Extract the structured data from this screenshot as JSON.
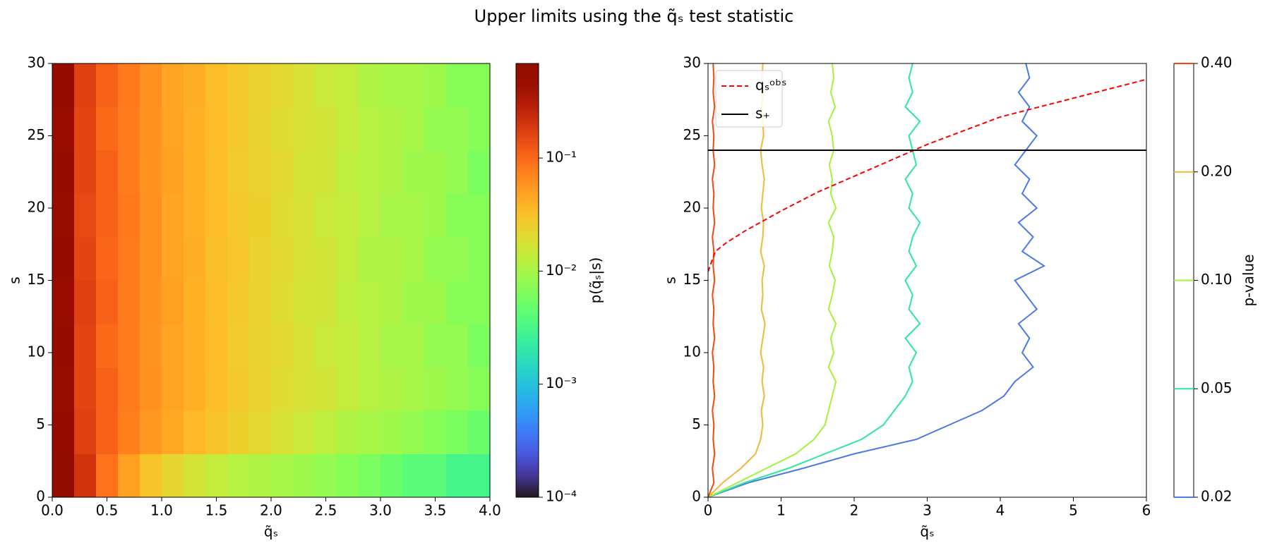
{
  "chart_data": [
    {
      "type": "heatmap",
      "xlabel": "q̃ₛ",
      "ylabel": "s",
      "colorbar_label": "p(q̃ₛ|s)",
      "title": "Upper limits using the q̃ₛ test statistic",
      "xbins": [
        0,
        0.2,
        0.4,
        0.6,
        0.8,
        1.0,
        1.2,
        1.4,
        1.6,
        1.8,
        2.0,
        2.2,
        2.4,
        2.6,
        2.8,
        3.0,
        3.2,
        3.4,
        3.6,
        3.8,
        4.0
      ],
      "ybins": [
        0,
        3,
        6,
        9,
        12,
        15,
        18,
        21,
        24,
        27,
        30
      ],
      "z": [
        [
          0.55,
          0.2,
          0.09,
          0.05,
          0.03,
          0.022,
          0.017,
          0.014,
          0.012,
          0.011,
          0.01,
          0.009,
          0.008,
          0.007,
          0.006,
          0.005,
          0.004,
          0.004,
          0.003,
          0.003
        ],
        [
          0.5,
          0.17,
          0.11,
          0.075,
          0.055,
          0.045,
          0.036,
          0.03,
          0.025,
          0.021,
          0.018,
          0.015,
          0.013,
          0.011,
          0.01,
          0.009,
          0.008,
          0.007,
          0.006,
          0.005
        ],
        [
          0.48,
          0.16,
          0.11,
          0.08,
          0.06,
          0.048,
          0.04,
          0.033,
          0.028,
          0.024,
          0.02,
          0.018,
          0.016,
          0.014,
          0.012,
          0.011,
          0.01,
          0.009,
          0.008,
          0.007
        ],
        [
          0.49,
          0.16,
          0.1,
          0.08,
          0.058,
          0.047,
          0.04,
          0.034,
          0.027,
          0.023,
          0.021,
          0.018,
          0.015,
          0.014,
          0.012,
          0.01,
          0.01,
          0.008,
          0.008,
          0.006
        ],
        [
          0.47,
          0.17,
          0.11,
          0.078,
          0.06,
          0.05,
          0.039,
          0.033,
          0.028,
          0.024,
          0.02,
          0.017,
          0.016,
          0.013,
          0.012,
          0.011,
          0.009,
          0.009,
          0.007,
          0.007
        ],
        [
          0.5,
          0.16,
          0.105,
          0.08,
          0.061,
          0.048,
          0.041,
          0.032,
          0.029,
          0.024,
          0.021,
          0.018,
          0.016,
          0.014,
          0.011,
          0.011,
          0.01,
          0.008,
          0.008,
          0.007
        ],
        [
          0.48,
          0.15,
          0.11,
          0.082,
          0.06,
          0.047,
          0.04,
          0.034,
          0.028,
          0.025,
          0.02,
          0.018,
          0.015,
          0.014,
          0.012,
          0.01,
          0.01,
          0.009,
          0.007,
          0.007
        ],
        [
          0.49,
          0.16,
          0.11,
          0.079,
          0.059,
          0.049,
          0.04,
          0.033,
          0.027,
          0.024,
          0.021,
          0.017,
          0.016,
          0.013,
          0.012,
          0.011,
          0.009,
          0.009,
          0.008,
          0.006
        ],
        [
          0.47,
          0.16,
          0.1,
          0.08,
          0.06,
          0.048,
          0.039,
          0.034,
          0.028,
          0.023,
          0.02,
          0.018,
          0.016,
          0.014,
          0.012,
          0.011,
          0.01,
          0.008,
          0.008,
          0.007
        ],
        [
          0.5,
          0.17,
          0.11,
          0.081,
          0.061,
          0.047,
          0.041,
          0.033,
          0.028,
          0.024,
          0.021,
          0.018,
          0.015,
          0.014,
          0.011,
          0.01,
          0.01,
          0.009,
          0.007,
          0.007
        ]
      ],
      "log_color": true,
      "clim": [
        0.0001,
        0.686
      ],
      "xlim": [
        0,
        4
      ],
      "ylim": [
        0,
        30
      ],
      "xticks": [
        {
          "value": 0,
          "label": "0.0"
        },
        {
          "value": 0.5,
          "label": "0.5"
        },
        {
          "value": 1,
          "label": "1.0"
        },
        {
          "value": 1.5,
          "label": "1.5"
        },
        {
          "value": 2,
          "label": "2.0"
        },
        {
          "value": 2.5,
          "label": "2.5"
        },
        {
          "value": 3,
          "label": "3.0"
        },
        {
          "value": 3.5,
          "label": "3.5"
        },
        {
          "value": 4,
          "label": "4.0"
        }
      ],
      "yticks": [
        0,
        5,
        10,
        15,
        20,
        25,
        30
      ],
      "colorbar_ticks": [
        {
          "value": 0.0001,
          "label": "10⁻⁴"
        },
        {
          "value": 0.001,
          "label": "10⁻³"
        },
        {
          "value": 0.01,
          "label": "10⁻²"
        },
        {
          "value": 0.1,
          "label": "10⁻¹"
        }
      ]
    },
    {
      "type": "contour",
      "xlabel": "q̃ₛ",
      "ylabel": "s",
      "colorbar_label": "p-value",
      "xlim": [
        0,
        6
      ],
      "ylim": [
        0,
        30
      ],
      "xticks": [
        0,
        1,
        2,
        3,
        4,
        5,
        6
      ],
      "yticks": [
        0,
        5,
        10,
        15,
        20,
        25,
        30
      ],
      "colorbar_ticks": [
        {
          "value": 0.02,
          "label": "0.02"
        },
        {
          "value": 0.05,
          "label": "0.05"
        },
        {
          "value": 0.1,
          "label": "0.10"
        },
        {
          "value": 0.2,
          "label": "0.20"
        },
        {
          "value": 0.4,
          "label": "0.40"
        }
      ],
      "contour_y": [
        0,
        1,
        2,
        3,
        4,
        5,
        6,
        7,
        8,
        9,
        10,
        11,
        12,
        13,
        14,
        15,
        16,
        17,
        18,
        19,
        20,
        21,
        22,
        23,
        24,
        25,
        26,
        27,
        28,
        29,
        30
      ],
      "contours": [
        {
          "color": "#4a7ae8",
          "x": [
            0,
            0.55,
            1.3,
            2.0,
            2.85,
            3.3,
            3.75,
            4.05,
            4.2,
            4.45,
            4.3,
            4.4,
            4.25,
            4.5,
            4.35,
            4.2,
            4.6,
            4.3,
            4.45,
            4.25,
            4.5,
            4.3,
            4.4,
            4.2,
            4.35,
            4.5,
            4.3,
            4.4,
            4.25,
            4.4,
            4.35
          ]
        },
        {
          "color": "#2ee6a2",
          "x": [
            0,
            0.5,
            1.1,
            1.6,
            2.1,
            2.4,
            2.55,
            2.7,
            2.8,
            2.75,
            2.85,
            2.7,
            2.9,
            2.75,
            2.8,
            2.7,
            2.85,
            2.75,
            2.8,
            2.9,
            2.75,
            2.8,
            2.7,
            2.85,
            2.8,
            2.75,
            2.9,
            2.7,
            2.8,
            2.75,
            2.8
          ]
        },
        {
          "color": "#a6f23a",
          "x": [
            0,
            0.4,
            0.8,
            1.2,
            1.45,
            1.6,
            1.65,
            1.7,
            1.75,
            1.65,
            1.72,
            1.68,
            1.75,
            1.65,
            1.7,
            1.74,
            1.66,
            1.7,
            1.72,
            1.65,
            1.75,
            1.68,
            1.7,
            1.66,
            1.72,
            1.7,
            1.65,
            1.74,
            1.68,
            1.72,
            1.7
          ]
        },
        {
          "color": "#f0b83a",
          "x": [
            0,
            0.2,
            0.45,
            0.65,
            0.72,
            0.75,
            0.73,
            0.77,
            0.74,
            0.76,
            0.72,
            0.75,
            0.78,
            0.73,
            0.75,
            0.74,
            0.77,
            0.72,
            0.75,
            0.76,
            0.73,
            0.75,
            0.77,
            0.74,
            0.72,
            0.76,
            0.75,
            0.73,
            0.76,
            0.74,
            0.75
          ]
        },
        {
          "color": "#f04a10",
          "x": [
            0,
            0.08,
            0.06,
            0.09,
            0.07,
            0.08,
            0.06,
            0.09,
            0.07,
            0.08,
            0.06,
            0.09,
            0.07,
            0.08,
            0.06,
            0.09,
            0.07,
            0.08,
            0.06,
            0.09,
            0.07,
            0.08,
            0.06,
            0.09,
            0.07,
            0.08,
            0.06,
            0.09,
            0.07,
            0.08,
            0.07
          ]
        }
      ],
      "series": [
        {
          "name": "qₛᵒᵇˢ",
          "color": "#ff0000",
          "dashed": true,
          "x": [
            0,
            0.1,
            0.25,
            0.5,
            1,
            1.5,
            2,
            3,
            4,
            5,
            6
          ],
          "values": [
            15.6,
            17.0,
            17.6,
            18.4,
            19.8,
            21.1,
            22.2,
            24.4,
            26.3,
            27.6,
            28.9
          ]
        },
        {
          "name": "s₊",
          "color": "#000000",
          "dashed": false,
          "x": [
            0,
            6
          ],
          "values": [
            24,
            24
          ]
        }
      ],
      "legend": "upper left"
    }
  ]
}
